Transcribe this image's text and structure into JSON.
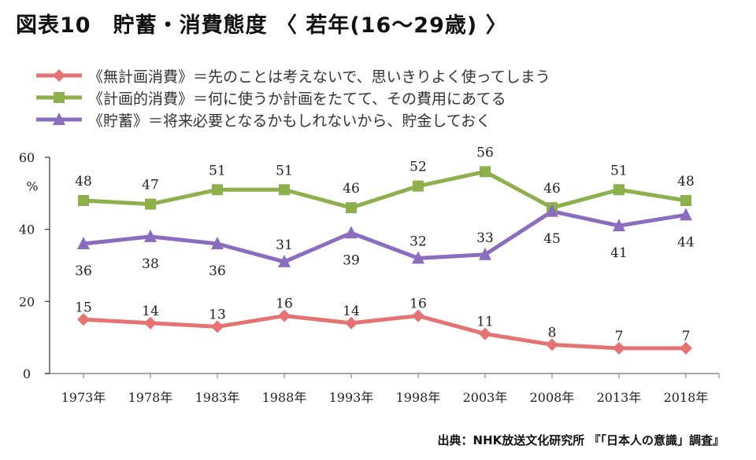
{
  "header": {
    "title": "図表10　貯蓄・消費態度 〈 若年(16〜29歳) 〉"
  },
  "source": "出典：NHK放送文化研究所 『「日本人の意識」調査』",
  "chart_data": {
    "type": "line",
    "title": "図表10　貯蓄・消費態度 〈 若年(16〜29歳) 〉",
    "xlabel": "",
    "ylabel": "%",
    "ylim": [
      0,
      60
    ],
    "yticks": [
      0,
      20,
      40,
      60
    ],
    "grid": false,
    "legend_position": "top-left",
    "categories": [
      "1973年",
      "1978年",
      "1983年",
      "1988年",
      "1993年",
      "1998年",
      "2003年",
      "2008年",
      "2013年",
      "2018年"
    ],
    "series": [
      {
        "name": "《無計画消費》＝先のことは考えないで、思いきりよく使ってしまう",
        "marker": "diamond",
        "color": "#E57373",
        "values": [
          15,
          14,
          13,
          16,
          14,
          16,
          11,
          8,
          7,
          7
        ],
        "label_position": "above"
      },
      {
        "name": "《計画的消費》＝何に使うか計画をたてて、その費用にあてる",
        "marker": "square",
        "color": "#8DB04D",
        "values": [
          48,
          47,
          51,
          51,
          46,
          52,
          56,
          46,
          51,
          48
        ],
        "label_position": "above"
      },
      {
        "name": "《貯蓄》＝将来必要となるかもしれないから、貯金しておく",
        "marker": "triangle",
        "color": "#8A6DBF",
        "values": [
          36,
          38,
          36,
          31,
          39,
          32,
          33,
          45,
          41,
          44
        ],
        "label_position": [
          "below",
          "below",
          "below",
          "above",
          "below",
          "above",
          "above",
          "below",
          "below",
          "below"
        ]
      }
    ]
  }
}
